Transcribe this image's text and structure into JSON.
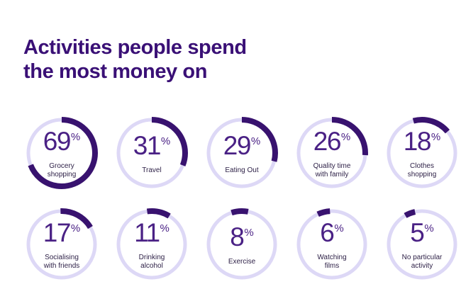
{
  "title": {
    "line1": "Activities people spend",
    "line2": "the most money on"
  },
  "colors": {
    "background": "#ffffff",
    "title_text": "#3a1076",
    "number_text": "#4a2185",
    "label_text": "#2f2248",
    "ring_track": "#ddd8f6",
    "ring_arc": "#38126f"
  },
  "chart_data": {
    "type": "pie",
    "variant": "donut-gauge-grid",
    "title": "Activities people spend the most money on",
    "unit": "%",
    "legend_position": "none",
    "grid": "2 rows x 5 columns",
    "categories": [
      "Grocery shopping",
      "Travel",
      "Eating Out",
      "Quality time with family",
      "Clothes shopping",
      "Socialising with friends",
      "Drinking alcohol",
      "Exercise",
      "Watching films",
      "No particular activity"
    ],
    "values": [
      69,
      31,
      29,
      26,
      18,
      17,
      11,
      8,
      6,
      5
    ]
  },
  "gauges": [
    {
      "value": "69",
      "pct": 69,
      "percent_sign": "%",
      "label_lines": [
        "Grocery",
        "shopping"
      ],
      "start_deg": 0
    },
    {
      "value": "31",
      "pct": 31,
      "percent_sign": "%",
      "label_lines": [
        "Travel"
      ],
      "start_deg": 0
    },
    {
      "value": "29",
      "pct": 29,
      "percent_sign": "%",
      "label_lines": [
        "Eating Out"
      ],
      "start_deg": 0
    },
    {
      "value": "26",
      "pct": 26,
      "percent_sign": "%",
      "label_lines": [
        "Quality time",
        "with family"
      ],
      "start_deg": 0
    },
    {
      "value": "18",
      "pct": 18,
      "percent_sign": "%",
      "label_lines": [
        "Clothes",
        "shopping"
      ],
      "start_deg": -15
    },
    {
      "value": "17",
      "pct": 17,
      "percent_sign": "%",
      "label_lines": [
        "Socialising",
        "with friends"
      ],
      "start_deg": -2
    },
    {
      "value": "11",
      "pct": 11,
      "percent_sign": "%",
      "label_lines": [
        "Drinking",
        "alcohol"
      ],
      "start_deg": -8
    },
    {
      "value": "8",
      "pct": 8,
      "percent_sign": "%",
      "label_lines": [
        "Exercise"
      ],
      "start_deg": -18
    },
    {
      "value": "6",
      "pct": 6,
      "percent_sign": "%",
      "label_lines": [
        "Watching",
        "films"
      ],
      "start_deg": -25
    },
    {
      "value": "5",
      "pct": 5,
      "percent_sign": "%",
      "label_lines": [
        "No particular",
        "activity"
      ],
      "start_deg": -30
    }
  ]
}
